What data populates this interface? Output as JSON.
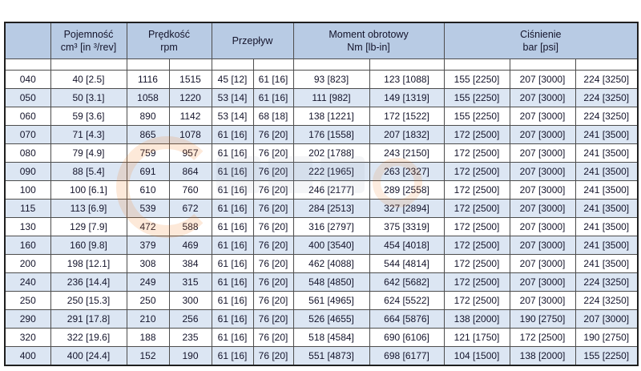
{
  "colors": {
    "header_bg": "#b8cbe4",
    "row_alt_bg": "#dce6f3",
    "border": "#4d4d4d",
    "watermark_accent": "#f07818"
  },
  "table": {
    "header": {
      "model": "",
      "capacity_line1": "Pojemność",
      "capacity_line2": "cm³ [in ³/rev]",
      "speed_line1": "Prędkość",
      "speed_line2": "rpm",
      "flow": "Przepływ",
      "torque_line1": "Moment obrotowy",
      "torque_line2": "Nm [lb-in]",
      "pressure_line1": "Ciśnienie",
      "pressure_line2": "bar [psi]"
    },
    "rows": [
      {
        "model": "040",
        "capacity": "40 [2.5]",
        "speed1": "1116",
        "speed2": "1515",
        "flow1": "45 [12]",
        "flow2": "61 [16]",
        "torque1": "93 [823]",
        "torque2": "123 [1088]",
        "press1": "155 [2250]",
        "press2": "207 [3000]",
        "press3": "224 [3250]"
      },
      {
        "model": "050",
        "capacity": "50 [3.1]",
        "speed1": "1058",
        "speed2": "1220",
        "flow1": "53 [14]",
        "flow2": "61 [16]",
        "torque1": "111 [982]",
        "torque2": "149 [1319]",
        "press1": "155 [2250]",
        "press2": "207 [3000]",
        "press3": "224 [3250]"
      },
      {
        "model": "060",
        "capacity": "59 [3.6]",
        "speed1": "890",
        "speed2": "1142",
        "flow1": "53 [14]",
        "flow2": "68 [18]",
        "torque1": "138 [1221]",
        "torque2": "172 [1522]",
        "press1": "155 [2250]",
        "press2": "207 [3000]",
        "press3": "224 [3250]"
      },
      {
        "model": "070",
        "capacity": "71 [4.3]",
        "speed1": "865",
        "speed2": "1078",
        "flow1": "61 [16]",
        "flow2": "76 [20]",
        "torque1": "176 [1558]",
        "torque2": "207 [1832]",
        "press1": "172 [2500]",
        "press2": "207 [3000]",
        "press3": "241 [3500]"
      },
      {
        "model": "080",
        "capacity": "79 [4.9]",
        "speed1": "759",
        "speed2": "957",
        "flow1": "61 [16]",
        "flow2": "76 [20]",
        "torque1": "202 [1788]",
        "torque2": "243 [2150]",
        "press1": "172 [2500]",
        "press2": "207 [3000]",
        "press3": "241 [3500]"
      },
      {
        "model": "090",
        "capacity": "88 [5.4]",
        "speed1": "691",
        "speed2": "864",
        "flow1": "61 [16]",
        "flow2": "76 [20]",
        "torque1": "222 [1965]",
        "torque2": "263 [2327]",
        "press1": "172 [2500]",
        "press2": "207 [3000]",
        "press3": "241 [3500]"
      },
      {
        "model": "100",
        "capacity": "100 [6.1]",
        "speed1": "610",
        "speed2": "760",
        "flow1": "61 [16]",
        "flow2": "76 [20]",
        "torque1": "246 [2177]",
        "torque2": "289 [2558]",
        "press1": "172 [2500]",
        "press2": "207 [3000]",
        "press3": "241 [3500]"
      },
      {
        "model": "115",
        "capacity": "113 [6.9]",
        "speed1": "539",
        "speed2": "672",
        "flow1": "61 [16]",
        "flow2": "76 [20]",
        "torque1": "284 [2513]",
        "torque2": "327 [2894]",
        "press1": "172 [2500]",
        "press2": "207 [3000]",
        "press3": "241 [3500]"
      },
      {
        "model": "130",
        "capacity": "129 [7.9]",
        "speed1": "472",
        "speed2": "588",
        "flow1": "61 [16]",
        "flow2": "76 [20]",
        "torque1": "316 [2797]",
        "torque2": "375 [3319]",
        "press1": "172 [2500]",
        "press2": "207 [3000]",
        "press3": "241 [3500]"
      },
      {
        "model": "160",
        "capacity": "160 [9.8]",
        "speed1": "379",
        "speed2": "469",
        "flow1": "61 [16]",
        "flow2": "76 [20]",
        "torque1": "400 [3540]",
        "torque2": "454 [4018]",
        "press1": "172 [2500]",
        "press2": "207 [3000]",
        "press3": "241 [3500]"
      },
      {
        "model": "200",
        "capacity": "198 [12.1]",
        "speed1": "308",
        "speed2": "384",
        "flow1": "61 [16]",
        "flow2": "76 [20]",
        "torque1": "462 [4088]",
        "torque2": "544 [4814]",
        "press1": "172 [2500]",
        "press2": "207 [3000]",
        "press3": "241 [3500]"
      },
      {
        "model": "240",
        "capacity": "236 [14.4]",
        "speed1": "249",
        "speed2": "315",
        "flow1": "61 [16]",
        "flow2": "76 [20]",
        "torque1": "548 [4850]",
        "torque2": "642 [5682]",
        "press1": "172 [2500]",
        "press2": "207 [3000]",
        "press3": "224 [3250]"
      },
      {
        "model": "250",
        "capacity": "250 [15.3]",
        "speed1": "250",
        "speed2": "300",
        "flow1": "61 [16]",
        "flow2": "76 [20]",
        "torque1": "561 [4965]",
        "torque2": "624 [5522]",
        "press1": "172 [2500]",
        "press2": "207 [3000]",
        "press3": "224 [3250]"
      },
      {
        "model": "290",
        "capacity": "291 [17.8]",
        "speed1": "210",
        "speed2": "256",
        "flow1": "61 [16]",
        "flow2": "76 [20]",
        "torque1": "526 [4655]",
        "torque2": "664 [5876]",
        "press1": "138 [2000]",
        "press2": "190 [2750]",
        "press3": "207 [3000]"
      },
      {
        "model": "320",
        "capacity": "322 [19.6]",
        "speed1": "188",
        "speed2": "235",
        "flow1": "61 [16]",
        "flow2": "76 [20]",
        "torque1": "518 [4584]",
        "torque2": "690 [6106]",
        "press1": "121 [1750]",
        "press2": "172 [2500]",
        "press3": "190 [2750]"
      },
      {
        "model": "400",
        "capacity": "400 [24.4]",
        "speed1": "152",
        "speed2": "190",
        "flow1": "61 [16]",
        "flow2": "76 [20]",
        "torque1": "551 [4873]",
        "torque2": "698 [6177]",
        "press1": "104 [1500]",
        "press2": "138 [2000]",
        "press3": "155 [2250]"
      }
    ]
  }
}
